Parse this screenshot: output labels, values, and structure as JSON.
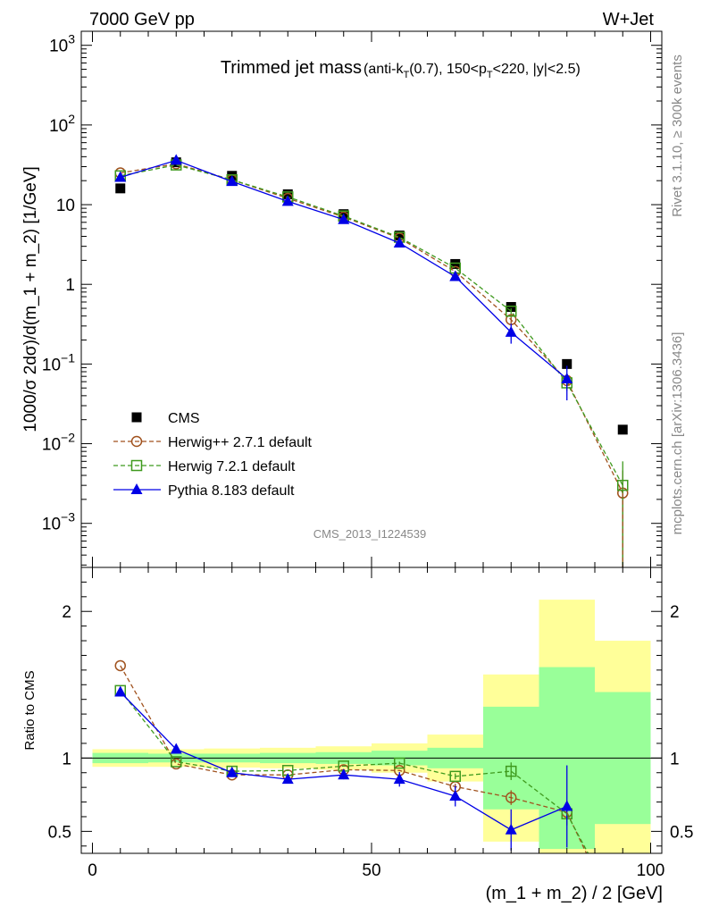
{
  "header": {
    "left": "7000 GeV pp",
    "right": "W+Jet"
  },
  "side": {
    "rivet": "Rivet 3.1.10, ≥ 300k events",
    "mcplots": "mcplots.cern.ch [arXiv:1306.3436]"
  },
  "colors": {
    "cms": "#000000",
    "herwigpp": "#a0521e",
    "herwig7": "#3f9a1e",
    "pythia": "#0000e6",
    "band_inner": "#99ff99",
    "band_outer": "#ffff99"
  },
  "chart_data": [
    {
      "panel": "main",
      "type": "line",
      "title": "Trimmed jet mass",
      "subtitle": "(anti-k_T(0.7), 150<p_T<220, |y|<2.5)",
      "watermark": "CMS_2013_I1224539",
      "ylabel": "1000/σ 2dσ)/d(m_1 + m_2) [1/GeV]",
      "yscale": "log",
      "xlim": [
        -2,
        102
      ],
      "ylim": [
        0.00028,
        1500
      ],
      "yticks": [
        {
          "v": 1000,
          "m": "10",
          "e": "3"
        },
        {
          "v": 100,
          "m": "10",
          "e": "2"
        },
        {
          "v": 10,
          "m": "10",
          "e": ""
        },
        {
          "v": 1,
          "m": "1",
          "e": ""
        },
        {
          "v": 0.1,
          "m": "10",
          "e": "−1"
        },
        {
          "v": 0.01,
          "m": "10",
          "e": "−2"
        },
        {
          "v": 0.001,
          "m": "10",
          "e": "−3"
        }
      ],
      "x": [
        5,
        15,
        25,
        35,
        45,
        55,
        65,
        75,
        85,
        95
      ],
      "series": [
        {
          "name": "CMS",
          "key": "cms",
          "values": [
            16,
            34,
            23,
            13.5,
            7.6,
            4.1,
            1.8,
            0.52,
            0.1,
            0.015
          ]
        },
        {
          "name": "Herwig++ 2.7.1 default",
          "key": "herwigpp",
          "values": [
            25,
            32.5,
            20.5,
            12,
            7,
            3.8,
            1.45,
            0.36,
            0.062,
            0.0024
          ],
          "err": [
            0,
            0,
            0,
            0,
            0,
            0,
            0,
            0.04,
            0.012,
            0.0022
          ]
        },
        {
          "name": "Herwig 7.2.1 default",
          "key": "herwig7",
          "values": [
            23,
            31.5,
            20.5,
            12.5,
            7.2,
            3.9,
            1.6,
            0.46,
            0.058,
            0.003
          ],
          "err": [
            0,
            0,
            0,
            0,
            0,
            0,
            0,
            0.04,
            0.012,
            0.003
          ]
        },
        {
          "name": "Pythia 8.183 default",
          "key": "pythia",
          "values": [
            22,
            36,
            19.5,
            11,
            6.5,
            3.3,
            1.25,
            0.25,
            0.065,
            null
          ],
          "err": [
            0,
            0,
            0,
            0,
            0,
            0.2,
            0.12,
            0.07,
            0.03,
            0
          ]
        }
      ]
    },
    {
      "panel": "ratio",
      "type": "line",
      "ylabel": "Ratio to CMS",
      "xlabel": "(m_1 + m_2) / 2 [GeV]",
      "xlim": [
        -2,
        102
      ],
      "ylim": [
        0.35,
        2.3
      ],
      "xticks": [
        0,
        50,
        100
      ],
      "yticks": [
        0.5,
        1,
        2
      ],
      "bands": {
        "edges": [
          0,
          10,
          20,
          30,
          40,
          50,
          60,
          70,
          80,
          90,
          100
        ],
        "inner": [
          0.035,
          0.03,
          0.03,
          0.035,
          0.04,
          0.05,
          0.07,
          0.35,
          0.62,
          0.45
        ],
        "outer": [
          0.06,
          0.06,
          0.065,
          0.07,
          0.08,
          0.1,
          0.16,
          0.57,
          1.08,
          0.8
        ]
      },
      "x": [
        5,
        15,
        25,
        35,
        45,
        55,
        65,
        75,
        85,
        95
      ],
      "series": [
        {
          "name": "Herwig++ 2.7.1 default",
          "key": "herwigpp",
          "values": [
            1.63,
            0.96,
            0.885,
            0.885,
            0.92,
            0.915,
            0.805,
            0.73,
            0.63,
            null
          ],
          "err": [
            0,
            0,
            0,
            0,
            0,
            0,
            0.02,
            0.05,
            0.08,
            0
          ]
        },
        {
          "name": "Herwig 7.2.1 default",
          "key": "herwig7",
          "values": [
            1.46,
            0.975,
            0.91,
            0.915,
            0.945,
            0.965,
            0.875,
            0.91,
            0.62,
            null
          ],
          "err": [
            0,
            0,
            0,
            0,
            0,
            0.01,
            0.02,
            0.06,
            0.08,
            0
          ]
        },
        {
          "name": "Pythia 8.183 default",
          "key": "pythia",
          "values": [
            1.45,
            1.06,
            0.9,
            0.855,
            0.885,
            0.855,
            0.74,
            0.51,
            0.67,
            null
          ],
          "err": [
            0,
            0,
            0,
            0.02,
            0.03,
            0.05,
            0.07,
            0.14,
            0.28,
            0
          ]
        }
      ]
    }
  ]
}
